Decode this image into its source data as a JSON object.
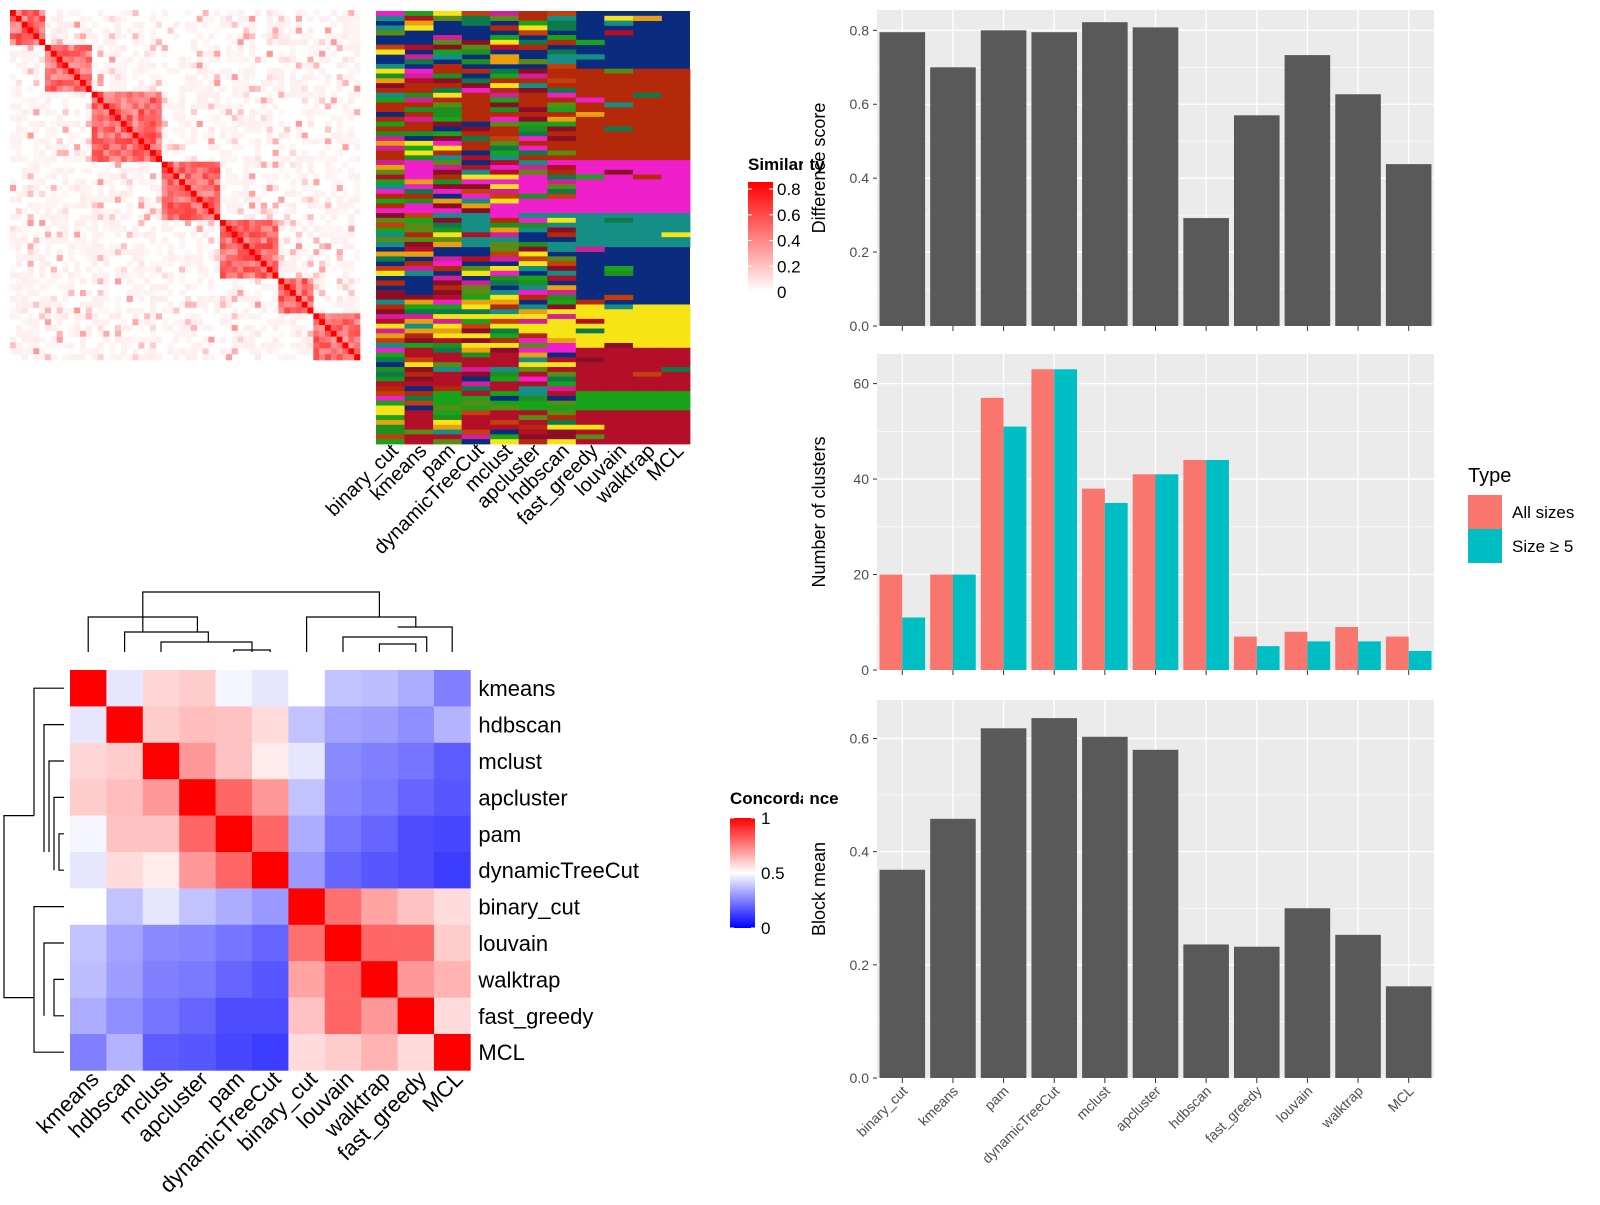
{
  "similarity_legend": {
    "title": "Similarity",
    "ticks": [
      "0.8",
      "0.6",
      "0.4",
      "0.2",
      "0"
    ],
    "tick_values": [
      0.8,
      0.6,
      0.4,
      0.2,
      0
    ],
    "colors": [
      "#ffffff",
      "#ff0000"
    ]
  },
  "partition_methods": [
    "binary_cut",
    "kmeans",
    "pam",
    "dynamicTreeCut",
    "mclust",
    "apcluster",
    "hdbscan",
    "fast_greedy",
    "louvain",
    "walktrap",
    "MCL"
  ],
  "partition_palette": [
    "#0b2b7f",
    "#b5290b",
    "#ef1fcb",
    "#158f86",
    "#f6e416",
    "#b30f28",
    "#18a31a",
    "#0d7a4a",
    "#e8a00e",
    "#8b0e28",
    "#5a8c15",
    "#d21f9a",
    "#c43f0c",
    "#1f8f1f"
  ],
  "concordance_legend": {
    "title": "Concordance",
    "ticks": [
      "1",
      "0.5",
      "0"
    ],
    "tick_values": [
      1,
      0.5,
      0
    ],
    "colors": [
      "#0000ff",
      "#ffffff",
      "#ff0000"
    ]
  },
  "panel_colors": {
    "bar": "#595959",
    "panel_bg": "#ebebeb",
    "grid": "#ffffff",
    "all_sizes": "#f8766d",
    "size_ge_5": "#00bfc4"
  },
  "chart_data": [
    {
      "type": "heatmap",
      "title": "",
      "xlabel": "",
      "ylabel": "",
      "rows": [
        "kmeans",
        "hdbscan",
        "mclust",
        "apcluster",
        "pam",
        "dynamicTreeCut",
        "binary_cut",
        "louvain",
        "walktrap",
        "fast_greedy",
        "MCL"
      ],
      "columns": [
        "kmeans",
        "hdbscan",
        "mclust",
        "apcluster",
        "pam",
        "dynamicTreeCut",
        "binary_cut",
        "louvain",
        "walktrap",
        "fast_greedy",
        "MCL"
      ],
      "values": [
        [
          1.0,
          0.45,
          0.58,
          0.6,
          0.48,
          0.45,
          0.5,
          0.38,
          0.37,
          0.34,
          0.25
        ],
        [
          0.45,
          1.0,
          0.6,
          0.63,
          0.62,
          0.57,
          0.38,
          0.32,
          0.31,
          0.28,
          0.35
        ],
        [
          0.58,
          0.6,
          1.0,
          0.7,
          0.62,
          0.54,
          0.45,
          0.27,
          0.25,
          0.23,
          0.18
        ],
        [
          0.6,
          0.63,
          0.7,
          1.0,
          0.8,
          0.7,
          0.38,
          0.26,
          0.24,
          0.2,
          0.17
        ],
        [
          0.48,
          0.62,
          0.62,
          0.8,
          1.0,
          0.8,
          0.34,
          0.23,
          0.2,
          0.15,
          0.14
        ],
        [
          0.45,
          0.57,
          0.54,
          0.7,
          0.8,
          1.0,
          0.3,
          0.2,
          0.17,
          0.15,
          0.12
        ],
        [
          0.5,
          0.38,
          0.45,
          0.38,
          0.34,
          0.3,
          1.0,
          0.78,
          0.68,
          0.62,
          0.57
        ],
        [
          0.38,
          0.32,
          0.27,
          0.26,
          0.23,
          0.2,
          0.78,
          1.0,
          0.8,
          0.8,
          0.6
        ],
        [
          0.37,
          0.31,
          0.25,
          0.24,
          0.2,
          0.17,
          0.68,
          0.8,
          1.0,
          0.7,
          0.65
        ],
        [
          0.34,
          0.28,
          0.23,
          0.2,
          0.15,
          0.15,
          0.62,
          0.8,
          0.7,
          1.0,
          0.57
        ],
        [
          0.25,
          0.35,
          0.18,
          0.17,
          0.14,
          0.12,
          0.57,
          0.6,
          0.65,
          0.57,
          1.0
        ]
      ],
      "color_range": [
        0,
        1
      ],
      "legend": "Concordance"
    },
    {
      "type": "bar",
      "title": "",
      "xlabel": "",
      "ylabel": "Difference score",
      "categories": [
        "binary_cut",
        "kmeans",
        "pam",
        "dynamicTreeCut",
        "mclust",
        "apcluster",
        "hdbscan",
        "fast_greedy",
        "louvain",
        "walktrap",
        "MCL"
      ],
      "values": [
        0.795,
        0.7,
        0.8,
        0.795,
        0.822,
        0.808,
        0.292,
        0.57,
        0.733,
        0.627,
        0.438
      ],
      "ylim": [
        0,
        0.855
      ],
      "yticks": [
        "0.0",
        "0.2",
        "0.4",
        "0.6",
        "0.8"
      ],
      "grid": true
    },
    {
      "type": "bar",
      "title": "",
      "xlabel": "",
      "ylabel": "Number of clusters",
      "categories": [
        "binary_cut",
        "kmeans",
        "pam",
        "dynamicTreeCut",
        "mclust",
        "apcluster",
        "hdbscan",
        "fast_greedy",
        "louvain",
        "walktrap",
        "MCL"
      ],
      "series": [
        {
          "name": "All sizes",
          "values": [
            20,
            20,
            57,
            63,
            38,
            41,
            44,
            7,
            8,
            9,
            7
          ]
        },
        {
          "name": "Size ≥ 5",
          "values": [
            11,
            20,
            51,
            63,
            35,
            41,
            44,
            5,
            6,
            6,
            4
          ]
        }
      ],
      "legend": {
        "title": "Type",
        "placement": "right"
      },
      "ylim": [
        0,
        66.2
      ],
      "yticks": [
        "0",
        "20",
        "40",
        "60"
      ],
      "grid": true
    },
    {
      "type": "bar",
      "title": "",
      "xlabel": "",
      "ylabel": "Block mean",
      "categories": [
        "binary_cut",
        "kmeans",
        "pam",
        "dynamicTreeCut",
        "mclust",
        "apcluster",
        "hdbscan",
        "fast_greedy",
        "louvain",
        "walktrap",
        "MCL"
      ],
      "values": [
        0.368,
        0.458,
        0.618,
        0.636,
        0.603,
        0.58,
        0.236,
        0.232,
        0.3,
        0.253,
        0.162
      ],
      "ylim": [
        0,
        0.668
      ],
      "yticks": [
        "0.0",
        "0.2",
        "0.4",
        "0.6"
      ],
      "grid": true
    }
  ]
}
